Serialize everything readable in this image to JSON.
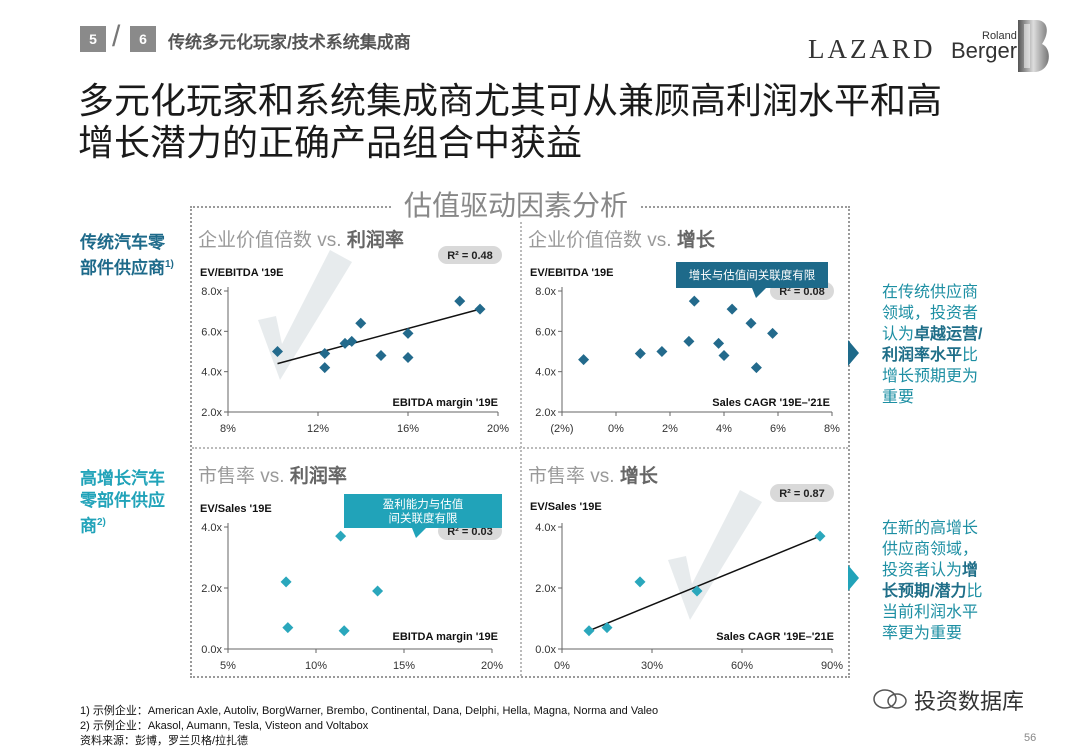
{
  "header": {
    "box_prev": "5",
    "box_curr": "6",
    "section_title": "传统多元化玩家/技术系统集成商",
    "logo_lazard": "LAZARD",
    "logo_rb_small": "Roland",
    "logo_rb_big": "Berger"
  },
  "title_line1": "多元化玩家和系统集成商尤其可从兼顾高利润水平和高",
  "title_line2": "增长潜力的正确产品组合中获益",
  "frame_title": "估值驱动因素分析",
  "row_labels": {
    "top": [
      "传统汽车零",
      "部件供应商"
    ],
    "top_sup": "1)",
    "bottom": [
      "高增长汽车",
      "零部件供应",
      "商"
    ],
    "bottom_sup": "2)"
  },
  "right_text": {
    "top": [
      "在传统供应商",
      "领域，投资者",
      "认为",
      "卓越运营/",
      "利润率水平",
      "比",
      "增长预期更为",
      "重要"
    ],
    "bottom": [
      "在新的高增长",
      "供应商领域，",
      "投资者认为",
      "增",
      "长预期/潜力",
      "比",
      "当前利润水平",
      "率更为重要"
    ]
  },
  "colors": {
    "accent": "#1e6a8a",
    "teal": "#21a3b9",
    "dark_marker": "#236a8c",
    "light_marker": "#2aa7bc"
  },
  "chart_data": [
    {
      "type": "scatter",
      "title": "企业价值倍数 vs. 利润率",
      "title_a": "企业价值倍数 vs. ",
      "title_b": "利润率",
      "ylabel": "EV/EBITDA '19E",
      "xlabel": "EBITDA margin '19E",
      "xlim": [
        8,
        20
      ],
      "ylim": [
        2,
        8
      ],
      "xticks": [
        8,
        12,
        16,
        20
      ],
      "xtick_labels": [
        "8%",
        "12%",
        "16%",
        "20%"
      ],
      "yticks": [
        2,
        4,
        6,
        8
      ],
      "ytick_labels": [
        "2.0x",
        "4.0x",
        "6.0x",
        "8.0x"
      ],
      "r2": "R² = 0.48",
      "trendline": [
        [
          10.2,
          4.4
        ],
        [
          19.2,
          7.1
        ]
      ],
      "points": [
        [
          10.2,
          5.0
        ],
        [
          12.3,
          4.2
        ],
        [
          12.3,
          4.9
        ],
        [
          13.2,
          5.4
        ],
        [
          13.5,
          5.5
        ],
        [
          13.9,
          6.4
        ],
        [
          14.8,
          4.8
        ],
        [
          16.0,
          5.9
        ],
        [
          16.0,
          4.7
        ],
        [
          18.3,
          7.5
        ],
        [
          19.2,
          7.1
        ]
      ]
    },
    {
      "type": "scatter",
      "title": "企业价值倍数 vs. 增长",
      "title_a": "企业价值倍数 vs. ",
      "title_b": "增长",
      "ylabel": "EV/EBITDA '19E",
      "xlabel": "Sales CAGR '19E–'21E",
      "xlim": [
        -2,
        8
      ],
      "ylim": [
        2,
        8
      ],
      "xticks": [
        -2,
        0,
        2,
        4,
        6,
        8
      ],
      "xtick_labels": [
        "(2%)",
        "0%",
        "2%",
        "4%",
        "6%",
        "8%"
      ],
      "yticks": [
        2,
        4,
        6,
        8
      ],
      "ytick_labels": [
        "2.0x",
        "4.0x",
        "6.0x",
        "8.0x"
      ],
      "r2": "R² = 0.08",
      "callout": "增长与估值间关联度有限",
      "points": [
        [
          -1.2,
          4.6
        ],
        [
          0.9,
          4.9
        ],
        [
          1.7,
          5.0
        ],
        [
          2.7,
          5.5
        ],
        [
          2.9,
          7.5
        ],
        [
          3.8,
          5.4
        ],
        [
          4.0,
          4.8
        ],
        [
          4.3,
          7.1
        ],
        [
          5.0,
          6.4
        ],
        [
          5.2,
          4.2
        ],
        [
          5.8,
          5.9
        ]
      ]
    },
    {
      "type": "scatter",
      "title": "市售率 vs. 利润率",
      "title_a": "市售率 vs. ",
      "title_b": "利润率",
      "ylabel": "EV/Sales '19E",
      "xlabel": "EBITDA margin '19E",
      "xlim": [
        5,
        20
      ],
      "ylim": [
        0,
        4
      ],
      "xticks": [
        5,
        10,
        15,
        20
      ],
      "xtick_labels": [
        "5%",
        "10%",
        "15%",
        "20%"
      ],
      "yticks": [
        0,
        2,
        4
      ],
      "ytick_labels": [
        "0.0x",
        "2.0x",
        "4.0x"
      ],
      "r2": "R² = 0.03",
      "callout": "盈利能力与估值间关联度有限",
      "points": [
        [
          8.3,
          2.2
        ],
        [
          8.4,
          0.7
        ],
        [
          11.4,
          3.7
        ],
        [
          11.6,
          0.6
        ],
        [
          13.5,
          1.9
        ]
      ]
    },
    {
      "type": "scatter",
      "title": "市售率 vs. 增长",
      "title_a": "市售率 vs. ",
      "title_b": "增长",
      "ylabel": "EV/Sales '19E",
      "xlabel": "Sales CAGR '19E–'21E",
      "xlim": [
        0,
        90
      ],
      "ylim": [
        0,
        4
      ],
      "xticks": [
        0,
        30,
        60,
        90
      ],
      "xtick_labels": [
        "0%",
        "30%",
        "60%",
        "90%"
      ],
      "yticks": [
        0,
        2,
        4
      ],
      "ytick_labels": [
        "0.0x",
        "2.0x",
        "4.0x"
      ],
      "r2": "R² = 0.87",
      "trendline": [
        [
          9,
          0.6
        ],
        [
          86,
          3.7
        ]
      ],
      "points": [
        [
          9,
          0.6
        ],
        [
          15,
          0.7
        ],
        [
          26,
          2.2
        ],
        [
          45,
          1.9
        ],
        [
          86,
          3.7
        ]
      ]
    }
  ],
  "footnotes": [
    "1) 示例企业：American Axle, Autoliv, BorgWarner, Brembo, Continental, Dana, Delphi, Hella, Magna, Norma and Valeo",
    "2) 示例企业：Akasol, Aumann, Tesla, Visteon and Voltabox",
    "资料来源：彭博，罗兰贝格/拉扎德"
  ],
  "watermark": "投资数据库",
  "page_number": "56"
}
